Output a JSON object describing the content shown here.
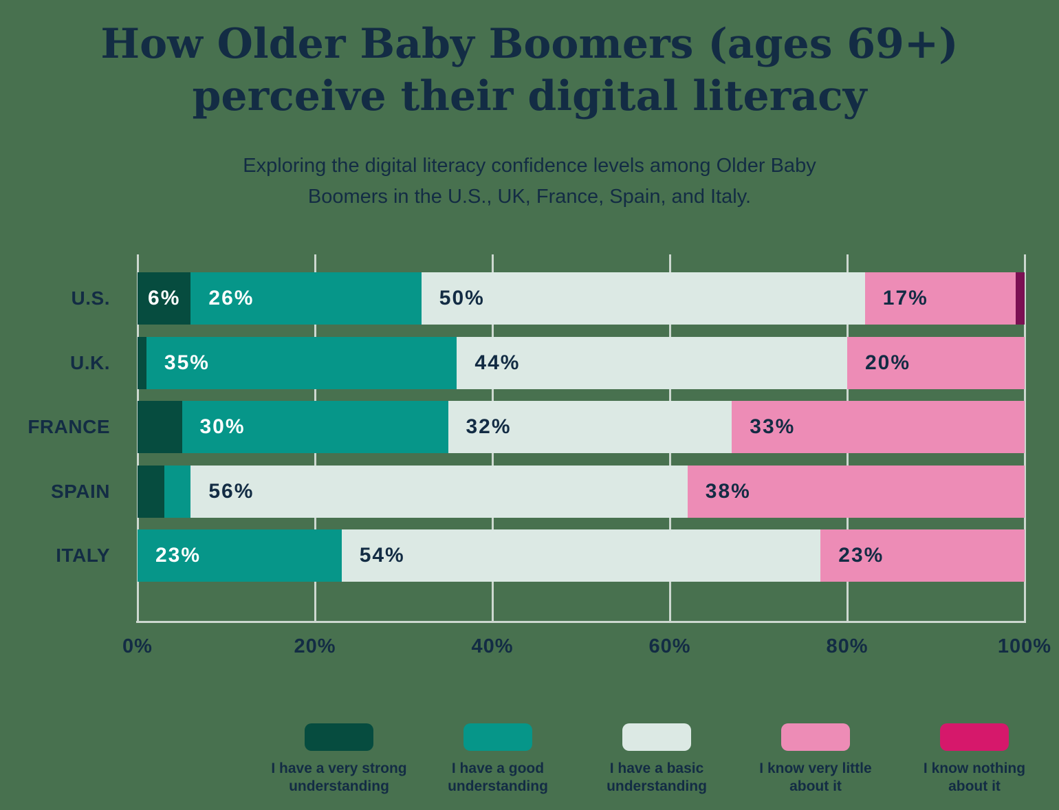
{
  "header": {
    "title_lines": [
      "How Older Baby Boomers (ages 69+)",
      "perceive their digital literacy"
    ],
    "subtitle_lines": [
      "Exploring the digital literacy confidence levels among Older Baby",
      "Boomers in the U.S., UK, France, Spain, and Italy."
    ]
  },
  "colors": {
    "background": "#48714f",
    "text_navy": "#132c44",
    "gridline": "#cdd8d0",
    "very_strong": "#064c3f",
    "good": "#069689",
    "basic": "#dce9e4",
    "very_little": "#ed8cb6",
    "nothing_bar": "#7b1053",
    "nothing_legend": "#d6186b"
  },
  "chart_data": {
    "type": "bar",
    "orientation": "horizontal_stacked",
    "stack_unit": "percent",
    "title": "How Older Baby Boomers (ages 69+) perceive their digital literacy",
    "subtitle": "Exploring the digital literacy confidence levels among Older Baby Boomers in the U.S., UK, France, Spain, and Italy.",
    "categories": [
      "U.S.",
      "U.K.",
      "FRANCE",
      "SPAIN",
      "ITALY"
    ],
    "series": [
      {
        "name": "I have a very strong understanding",
        "legend_lines": [
          "I have a very strong",
          "understanding"
        ],
        "color": "#064c3f",
        "text_color": "#ffffff",
        "values": [
          6,
          1,
          5,
          3,
          0
        ]
      },
      {
        "name": "I have a good understanding",
        "legend_lines": [
          "I have a good",
          "understanding"
        ],
        "color": "#069689",
        "text_color": "#ffffff",
        "values": [
          26,
          35,
          30,
          3,
          23
        ]
      },
      {
        "name": "I have a basic understanding",
        "legend_lines": [
          "I have a basic",
          "understanding"
        ],
        "color": "#dce9e4",
        "text_color": "#132c44",
        "values": [
          50,
          44,
          32,
          56,
          54
        ]
      },
      {
        "name": "I know very little about it",
        "legend_lines": [
          "I know very little",
          "about it"
        ],
        "color": "#ed8cb6",
        "text_color": "#132c44",
        "values": [
          17,
          20,
          33,
          38,
          23
        ]
      },
      {
        "name": "I know nothing about it",
        "legend_lines": [
          "I know nothing",
          "about it"
        ],
        "color": "#7b1053",
        "legend_color": "#d6186b",
        "text_color": "#ffffff",
        "values": [
          1,
          0,
          0,
          0,
          0
        ]
      }
    ],
    "x_tick_labels": [
      "0%",
      "20%",
      "40%",
      "60%",
      "80%",
      "100%"
    ],
    "xlim": [
      0,
      100
    ],
    "value_suffix": "%",
    "min_labeled_value": 6,
    "grid": "vertical",
    "legend_position": "bottom"
  }
}
